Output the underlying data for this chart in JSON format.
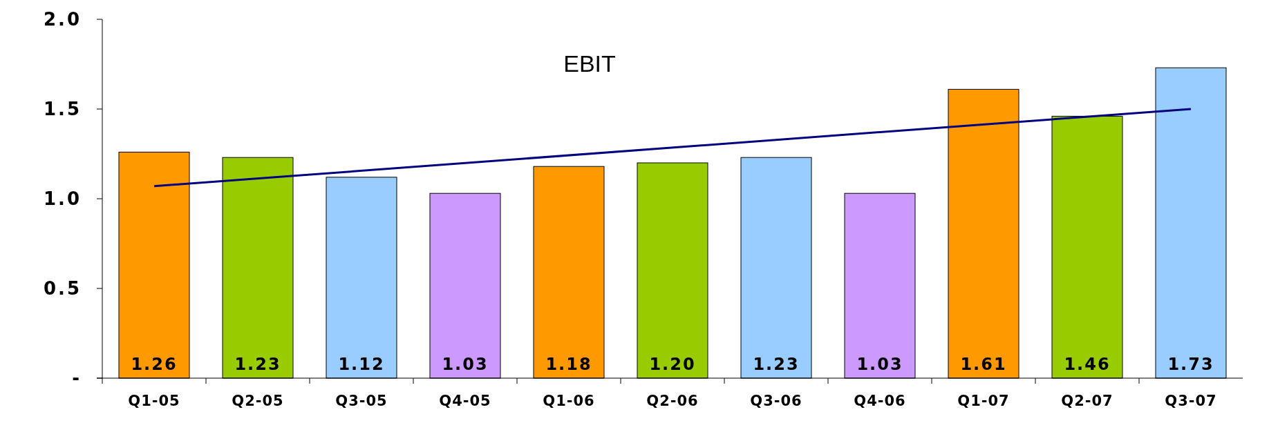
{
  "chart_data": {
    "type": "bar",
    "categories": [
      "Q1-05",
      "Q2-05",
      "Q3-05",
      "Q4-05",
      "Q1-06",
      "Q2-06",
      "Q3-06",
      "Q4-06",
      "Q1-07",
      "Q2-07",
      "Q3-07"
    ],
    "series": [
      {
        "values": [
          1.26,
          1.23,
          1.12,
          1.03,
          1.18,
          1.2,
          1.23,
          1.03,
          1.61,
          1.46,
          1.73
        ],
        "colors": [
          "#ff9900",
          "#99cc00",
          "#99ccff",
          "#cc99ff",
          "#ff9900",
          "#99cc00",
          "#99ccff",
          "#cc99ff",
          "#ff9900",
          "#99cc00",
          "#99ccff"
        ]
      },
      {
        "type": "line",
        "name": "EBIT",
        "color": "#000080",
        "x": [
          "Q1-05",
          "Q3-07"
        ],
        "values": [
          1.07,
          1.5
        ]
      }
    ],
    "value_labels": [
      "1.26",
      "1.23",
      "1.12",
      "1.03",
      "1.18",
      "1.20",
      "1.23",
      "1.03",
      "1.61",
      "1.46",
      "1.73"
    ],
    "ylim": [
      0,
      2
    ],
    "yticks": [
      {
        "value": 0,
        "label": "-"
      },
      0.5,
      {
        "value": 1,
        "label": "1.0"
      },
      1.5,
      {
        "value": 2,
        "label": "2.0"
      }
    ],
    "grid": false,
    "marker": "none",
    "line_style": "solid"
  }
}
